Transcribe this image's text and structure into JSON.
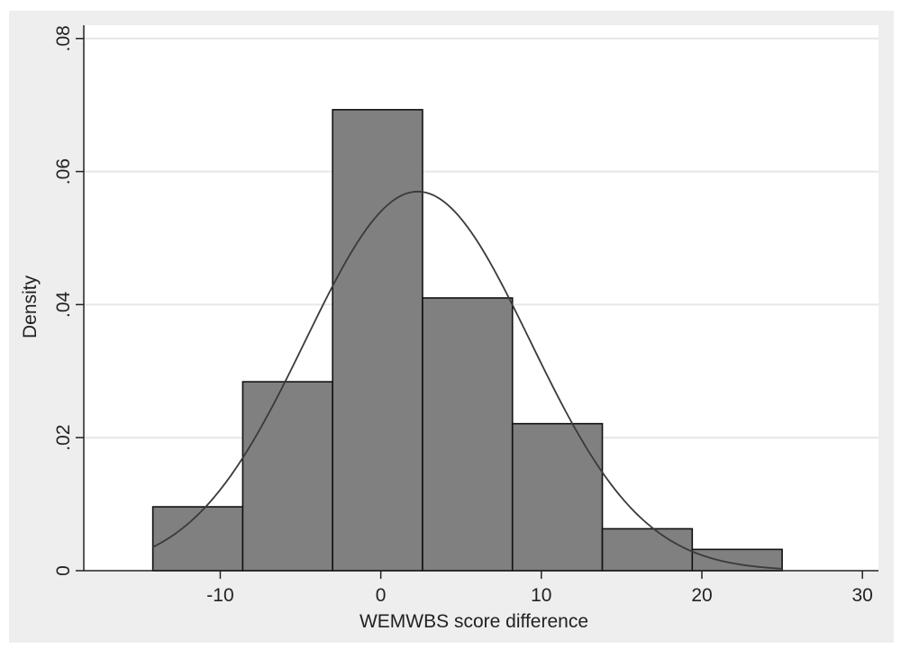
{
  "chart_data": {
    "type": "bar",
    "subtype": "histogram",
    "xlabel": "WEMWBS score difference",
    "ylabel": "Density",
    "xlim": [
      -18.5,
      31
    ],
    "ylim": [
      0,
      0.082
    ],
    "x_ticks": [
      {
        "value": -10,
        "label": "-10"
      },
      {
        "value": 0,
        "label": "0"
      },
      {
        "value": 10,
        "label": "10"
      },
      {
        "value": 20,
        "label": "20"
      },
      {
        "value": 30,
        "label": "30"
      }
    ],
    "y_ticks": [
      {
        "value": 0,
        "label": "0"
      },
      {
        "value": 0.02,
        "label": ".02"
      },
      {
        "value": 0.04,
        "label": ".04"
      },
      {
        "value": 0.06,
        "label": ".06"
      },
      {
        "value": 0.08,
        "label": ".08"
      }
    ],
    "bins": [
      {
        "x0": -14.2,
        "x1": -8.6,
        "density": 0.0096
      },
      {
        "x0": -8.6,
        "x1": -3.0,
        "density": 0.0284
      },
      {
        "x0": -3.0,
        "x1": 2.6,
        "density": 0.0693
      },
      {
        "x0": 2.6,
        "x1": 8.2,
        "density": 0.041
      },
      {
        "x0": 8.2,
        "x1": 13.8,
        "density": 0.0221
      },
      {
        "x0": 13.8,
        "x1": 19.4,
        "density": 0.0063
      },
      {
        "x0": 19.4,
        "x1": 25.0,
        "density": 0.0032
      }
    ],
    "normal_curve": {
      "mean": 2.3,
      "sd": 7.0,
      "x_from": -14.2,
      "x_to": 25.0
    },
    "grid": true,
    "legend": "none",
    "colors": {
      "background": "#eeeeee",
      "plot_background": "#ffffff",
      "bar_fill": "#808080",
      "bar_edge": "#111111",
      "curve": "#3a3a3a",
      "grid": "#e6e6e6"
    }
  }
}
